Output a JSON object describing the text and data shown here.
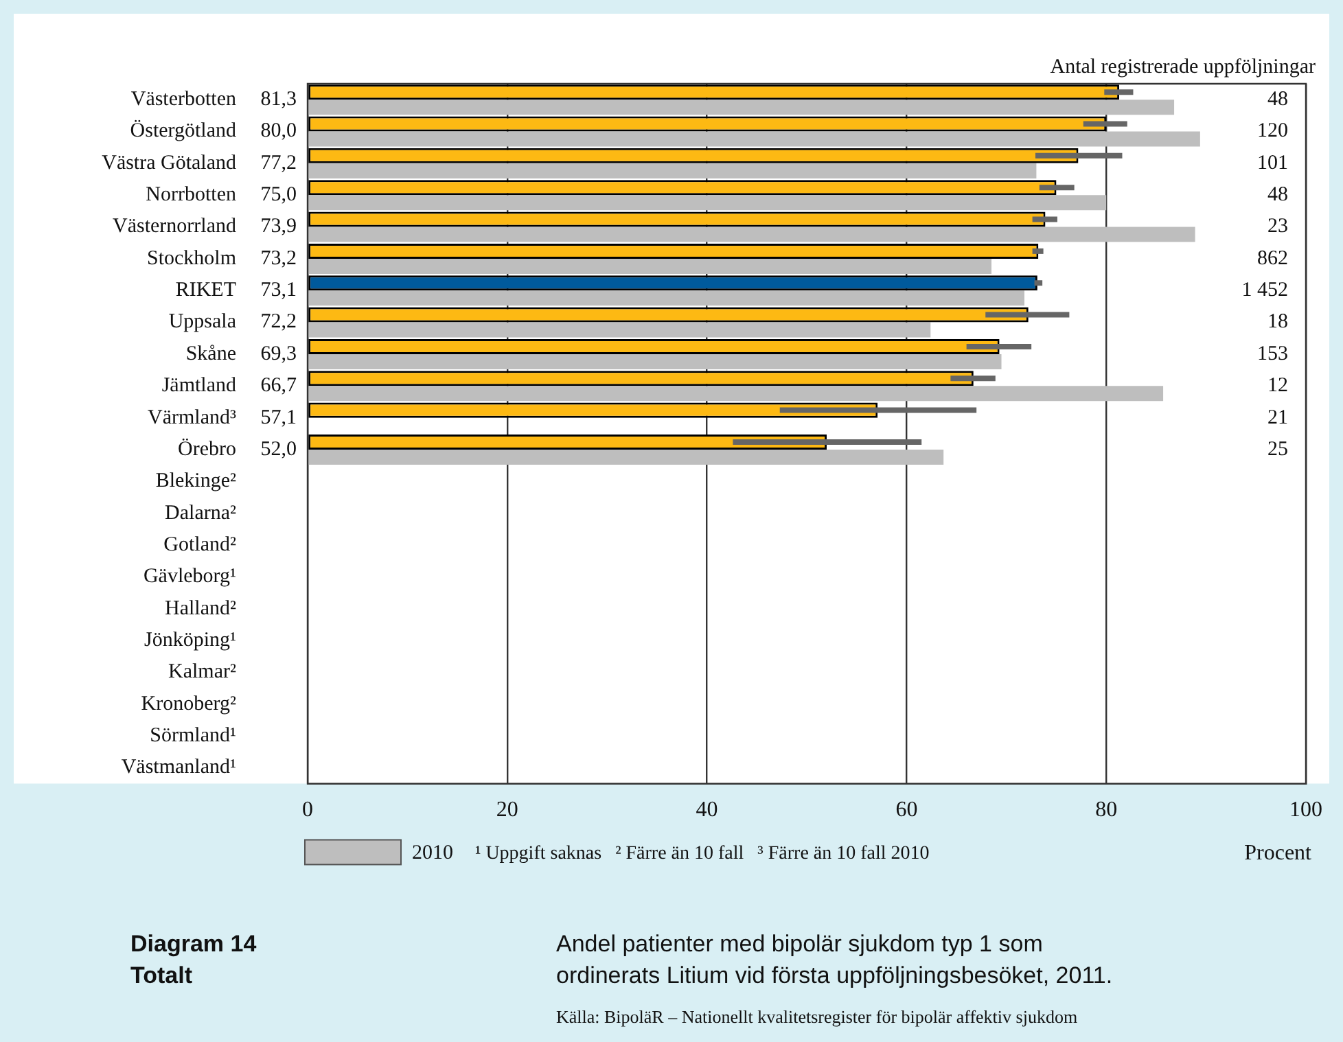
{
  "chart_data": {
    "type": "bar",
    "orientation": "horizontal",
    "title": "Andel patienter med bipolär sjukdom typ 1 som ordinerats Litium vid första uppföljningsbesöket, 2011.",
    "xlabel": "Procent",
    "categories": [
      "Västerbotten",
      "Östergötland",
      "Västra Götaland",
      "Norrbotten",
      "Västernorrland",
      "Stockholm",
      "RIKET",
      "Uppsala",
      "Skåne",
      "Jämtland",
      "Värmland³",
      "Örebro",
      "Blekinge²",
      "Dalarna²",
      "Gotland²",
      "Gävleborg¹",
      "Halland²",
      "Jönköping¹",
      "Kalmar²",
      "Kronoberg²",
      "Sörmland¹",
      "Västmanland¹"
    ],
    "series": [
      {
        "colors": [
          "#fdb913",
          "#fdb913",
          "#fdb913",
          "#fdb913",
          "#fdb913",
          "#fdb913",
          "#005a9c",
          "#fdb913",
          "#fdb913",
          "#fdb913",
          "#fdb913",
          "#fdb913",
          null,
          null,
          null,
          null,
          null,
          null,
          null,
          null,
          null,
          null
        ],
        "values": [
          81.3,
          80.0,
          77.2,
          75.0,
          73.9,
          73.2,
          73.1,
          72.2,
          69.3,
          66.7,
          57.1,
          52.0,
          null,
          null,
          null,
          null,
          null,
          null,
          null,
          null,
          null,
          null
        ],
        "value_labels": [
          "81,3",
          "80,0",
          "77,2",
          "75,0",
          "73,9",
          "73,2",
          "73,1",
          "72,2",
          "69,3",
          "66,7",
          "57,1",
          "52,0",
          null,
          null,
          null,
          null,
          null,
          null,
          null,
          null,
          null,
          null
        ],
        "errors": [
          [
            79.8,
            82.7
          ],
          [
            77.7,
            82.1
          ],
          [
            72.9,
            81.6
          ],
          [
            73.3,
            76.8
          ],
          [
            72.6,
            75.1
          ],
          [
            72.6,
            73.7
          ],
          [
            72.8,
            73.6
          ],
          [
            67.9,
            76.3
          ],
          [
            66.0,
            72.5
          ],
          [
            64.4,
            68.9
          ],
          [
            47.3,
            67.0
          ],
          [
            42.6,
            61.5
          ],
          null,
          null,
          null,
          null,
          null,
          null,
          null,
          null,
          null,
          null
        ]
      },
      {
        "name": "2010",
        "color": "#bebebe",
        "values": [
          86.8,
          89.4,
          73.0,
          80.0,
          88.9,
          68.5,
          71.8,
          62.4,
          69.5,
          85.7,
          null,
          63.7,
          null,
          null,
          null,
          null,
          null,
          null,
          null,
          null,
          null,
          null
        ]
      }
    ],
    "xlim": [
      0,
      100
    ],
    "xticks": [
      0,
      20,
      40,
      60,
      80,
      100
    ],
    "grid": "x",
    "legend": "bottom",
    "annotations": [
      "Antal registrerade uppföljningar",
      "¹ Uppgift saknas",
      "² Färre än 10 fall",
      "³ Färre än 10 fall 2010",
      "Diagram 14",
      "Totalt",
      "Källa: BipoläR – Nationellt kvalitetsregister för bipolär affektiv sjukdom",
      "48",
      "120",
      "101",
      "48",
      "23",
      "862",
      "1 452",
      "18",
      "153",
      "12",
      "21",
      "25"
    ]
  }
}
